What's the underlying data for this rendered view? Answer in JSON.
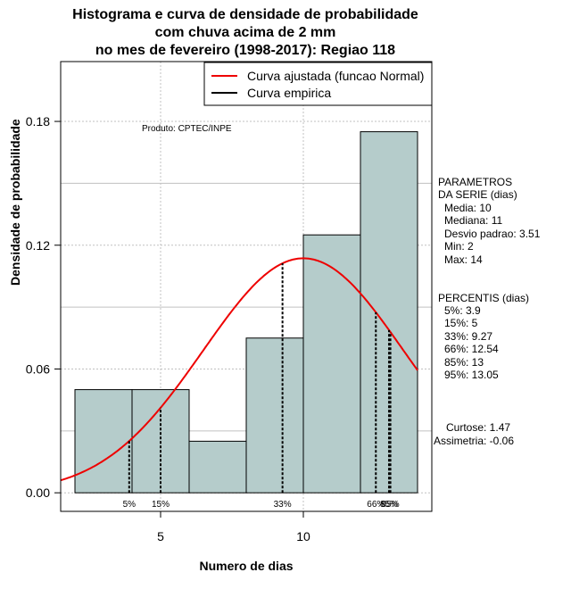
{
  "title": {
    "line1": "Histograma e curva de densidade de probabilidade",
    "line2": "com chuva acima de 2 mm",
    "line3": "no mes de fevereiro (1998-2017): Regiao 118"
  },
  "product_label": "Produto: CPTEC/INPE",
  "parametros": {
    "heading1": "PARAMETROS",
    "heading2": "DA SERIE (dias)",
    "lines": [
      "Media: 10",
      "Mediana: 11",
      "Desvio padrao: 3.51",
      "Min: 2",
      "Max: 14"
    ]
  },
  "percentis": {
    "heading": "PERCENTIS (dias)",
    "lines": [
      "5%: 3.9",
      "15%: 5",
      "33%: 9.27",
      "66%: 12.54",
      "85%: 13",
      "95%: 13.05"
    ]
  },
  "shape": {
    "lines": [
      "Curtose: 1.47",
      "Assimetria: -0.06"
    ]
  },
  "colors": {
    "bar_fill": "#b5cccb",
    "fitted_curve": "#ee0000",
    "empirical_curve": "#000000",
    "grid": "#c0c0c0"
  },
  "chart_data": {
    "type": "bar",
    "xlabel": "Numero de dias",
    "ylabel": "Densidade de probabilidade",
    "xlim": [
      1.5,
      14.5
    ],
    "ylim": [
      -0.009,
      0.209
    ],
    "x_ticks": [
      5,
      10
    ],
    "y_ticks": [
      0.0,
      0.06,
      0.12,
      0.18
    ],
    "y_tick_labels": [
      "0.00",
      "0.06",
      "0.12",
      "0.18"
    ],
    "grid": true,
    "legend_position": "top-right",
    "bins": [
      {
        "x0": 2,
        "x1": 4,
        "density": 0.05
      },
      {
        "x0": 4,
        "x1": 6,
        "density": 0.05
      },
      {
        "x0": 6,
        "x1": 8,
        "density": 0.025
      },
      {
        "x0": 8,
        "x1": 10,
        "density": 0.075
      },
      {
        "x0": 10,
        "x1": 12,
        "density": 0.125
      },
      {
        "x0": 12,
        "x1": 14,
        "density": 0.175
      }
    ],
    "series": [
      {
        "name": "Curva ajustada (funcao Normal)",
        "kind": "normal",
        "mean": 10,
        "sd": 3.51,
        "color": "#ee0000"
      },
      {
        "name": "Curva empirica",
        "color": "#000000"
      }
    ],
    "percentiles": [
      {
        "label": "5%",
        "x": 3.9
      },
      {
        "label": "15%",
        "x": 5
      },
      {
        "label": "33%",
        "x": 9.27
      },
      {
        "label": "66%",
        "x": 12.54
      },
      {
        "label": "85%",
        "x": 13
      },
      {
        "label": "95%",
        "x": 13.05
      }
    ]
  }
}
